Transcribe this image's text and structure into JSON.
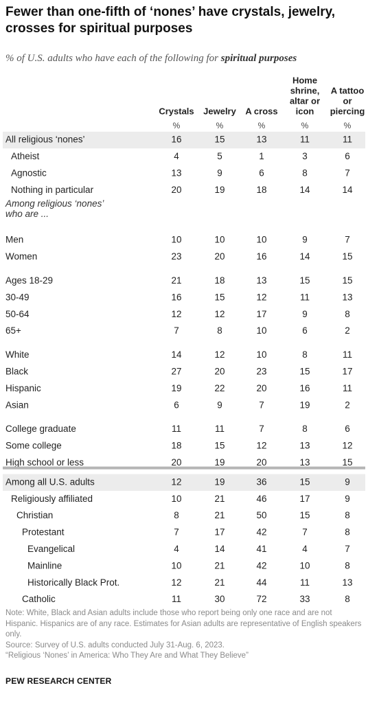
{
  "title": "Fewer than one-fifth of ‘nones’ have crystals, jewelry, crosses for spiritual purposes",
  "subtitle_prefix": "% of U.S. adults who have each of the following for ",
  "subtitle_emphasis": "spiritual purposes",
  "chart_data": {
    "type": "table",
    "columns": [
      {
        "label": [
          "Crystals"
        ],
        "unit": "%"
      },
      {
        "label": [
          "Jewelry"
        ],
        "unit": "%"
      },
      {
        "label": [
          "A cross"
        ],
        "unit": "%"
      },
      {
        "label": [
          "Home",
          "shrine,",
          "altar or",
          "icon"
        ],
        "unit": "%"
      },
      {
        "label": [
          "A tattoo",
          "or",
          "piercing"
        ],
        "unit": "%"
      }
    ],
    "rows": [
      {
        "label": "All religious ‘nones’",
        "indent": 0,
        "values": [
          16,
          15,
          13,
          11,
          11
        ],
        "shade": true
      },
      {
        "label": "Atheist",
        "indent": 1,
        "values": [
          4,
          5,
          1,
          3,
          6
        ]
      },
      {
        "label": "Agnostic",
        "indent": 1,
        "values": [
          13,
          9,
          6,
          8,
          7
        ]
      },
      {
        "label": "Nothing in particular",
        "indent": 1,
        "values": [
          20,
          19,
          18,
          14,
          14
        ]
      },
      {
        "section": [
          "Among religious ‘nones’",
          "who are ..."
        ]
      },
      {
        "label": "Men",
        "indent": 0,
        "values": [
          10,
          10,
          10,
          9,
          7
        ]
      },
      {
        "label": "Women",
        "indent": 0,
        "values": [
          23,
          20,
          16,
          14,
          15
        ]
      },
      {
        "label": "Ages 18-29",
        "indent": 0,
        "values": [
          21,
          18,
          13,
          15,
          15
        ],
        "gap": true
      },
      {
        "label": "30-49",
        "indent": 0,
        "values": [
          16,
          15,
          12,
          11,
          13
        ]
      },
      {
        "label": "50-64",
        "indent": 0,
        "values": [
          12,
          12,
          17,
          9,
          8
        ]
      },
      {
        "label": "65+",
        "indent": 0,
        "values": [
          7,
          8,
          10,
          6,
          2
        ]
      },
      {
        "label": "White",
        "indent": 0,
        "values": [
          14,
          12,
          10,
          8,
          11
        ],
        "gap": true
      },
      {
        "label": "Black",
        "indent": 0,
        "values": [
          27,
          20,
          23,
          15,
          17
        ]
      },
      {
        "label": "Hispanic",
        "indent": 0,
        "values": [
          19,
          22,
          20,
          16,
          11
        ]
      },
      {
        "label": "Asian",
        "indent": 0,
        "values": [
          6,
          9,
          7,
          19,
          2
        ]
      },
      {
        "label": "College graduate",
        "indent": 0,
        "values": [
          11,
          11,
          7,
          8,
          6
        ],
        "gap": true
      },
      {
        "label": "Some college",
        "indent": 0,
        "values": [
          18,
          15,
          12,
          13,
          12
        ]
      },
      {
        "label": "High school or less",
        "indent": 0,
        "values": [
          20,
          19,
          20,
          13,
          15
        ]
      },
      {
        "label": "Among all U.S. adults",
        "indent": 0,
        "values": [
          12,
          19,
          36,
          15,
          9
        ],
        "shade": true,
        "rule": true
      },
      {
        "label": "Religiously affiliated",
        "indent": 1,
        "values": [
          10,
          21,
          46,
          17,
          9
        ]
      },
      {
        "label": "Christian",
        "indent": 2,
        "values": [
          8,
          21,
          50,
          15,
          8
        ]
      },
      {
        "label": "Protestant",
        "indent": 3,
        "values": [
          7,
          17,
          42,
          7,
          8
        ]
      },
      {
        "label": "Evangelical",
        "indent": 4,
        "values": [
          4,
          14,
          41,
          4,
          7
        ]
      },
      {
        "label": "Mainline",
        "indent": 4,
        "values": [
          10,
          21,
          42,
          10,
          8
        ]
      },
      {
        "label": "Historically Black Prot.",
        "indent": 4,
        "values": [
          12,
          21,
          44,
          11,
          13
        ]
      },
      {
        "label": "Catholic",
        "indent": 3,
        "values": [
          11,
          30,
          72,
          33,
          8
        ]
      }
    ]
  },
  "notes": [
    "Note: White, Black and Asian adults include those who report being only one race and are not Hispanic. Hispanics are of any race. Estimates for Asian adults are representative of English speakers only.",
    "Source: Survey of U.S. adults conducted July 31-Aug. 6, 2023.",
    "“Religious ‘Nones’ in America: Who They Are and What They Believe”"
  ],
  "brand": "PEW RESEARCH CENTER",
  "colors": {
    "shade": "#ececec",
    "rule": "#b5b5b5",
    "text": "#222222",
    "note": "#8a8a8a"
  }
}
